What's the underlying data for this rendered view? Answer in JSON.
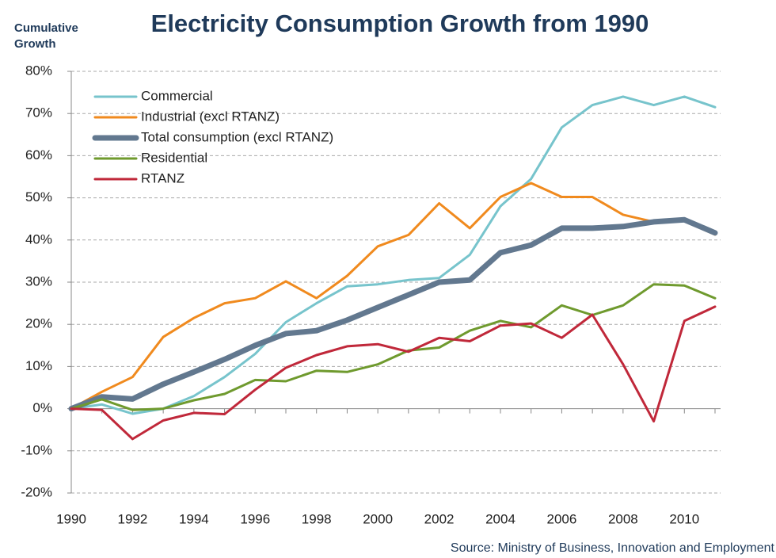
{
  "chart_data": {
    "type": "line",
    "title": "Electricity Consumption Growth from 1990",
    "y_label": "Cumulative Growth",
    "source": "Source: Ministry of Business, Innovation and Employment",
    "x": [
      1990,
      1991,
      1992,
      1993,
      1994,
      1995,
      1996,
      1997,
      1998,
      1999,
      2000,
      2001,
      2002,
      2003,
      2004,
      2005,
      2006,
      2007,
      2008,
      2009,
      2010,
      2011
    ],
    "xlim": [
      1990,
      2011
    ],
    "xticks": [
      1990,
      1992,
      1994,
      1996,
      1998,
      2000,
      2002,
      2004,
      2006,
      2008,
      2010
    ],
    "ylim": [
      -20,
      80
    ],
    "yticks": [
      {
        "value": -20,
        "label": "-20%"
      },
      {
        "value": -10,
        "label": "-10%"
      },
      {
        "value": 0,
        "label": "0%"
      },
      {
        "value": 10,
        "label": "10%"
      },
      {
        "value": 20,
        "label": "20%"
      },
      {
        "value": 30,
        "label": "30%"
      },
      {
        "value": 40,
        "label": "40%"
      },
      {
        "value": 50,
        "label": "50%"
      },
      {
        "value": 60,
        "label": "60%"
      },
      {
        "value": 70,
        "label": "70%"
      },
      {
        "value": 80,
        "label": "80%"
      }
    ],
    "grid": true,
    "legend": "upper left",
    "series": [
      {
        "name": "Commercial",
        "color": "#77c4cc",
        "width": 3,
        "values": [
          0,
          1,
          -1.2,
          0,
          3,
          7.5,
          13,
          20.5,
          25,
          29,
          29.5,
          30.5,
          31,
          36.5,
          48,
          54.5,
          66.7,
          72,
          74,
          72,
          74,
          71.5
        ]
      },
      {
        "name": "Industrial (excl RTANZ)",
        "color": "#f08a1e",
        "width": 3,
        "values": [
          0,
          4,
          7.5,
          17,
          21.5,
          25,
          26.2,
          30.2,
          26.2,
          31.5,
          38.5,
          41.2,
          48.7,
          42.8,
          50.2,
          53.5,
          50.2,
          50.2,
          46,
          44.3,
          44.5,
          41.3
        ]
      },
      {
        "name": "Total consumption (excl RTANZ)",
        "color": "#62788f",
        "width": 7,
        "values": [
          0,
          2.8,
          2.3,
          5.8,
          8.7,
          11.7,
          15,
          17.8,
          18.5,
          21,
          24,
          27,
          30,
          30.5,
          37,
          38.8,
          42.8,
          42.8,
          43.2,
          44.3,
          44.8,
          41.7
        ]
      },
      {
        "name": "Residential",
        "color": "#6f9a2e",
        "width": 3,
        "values": [
          0,
          2.2,
          -0.3,
          0,
          2,
          3.5,
          6.8,
          6.5,
          9,
          8.7,
          10.5,
          13.8,
          14.5,
          18.5,
          20.8,
          19.3,
          24.5,
          22.2,
          24.5,
          29.5,
          29.2,
          26.2
        ]
      },
      {
        "name": "RTANZ",
        "color": "#c0283a",
        "width": 3,
        "values": [
          0,
          -0.3,
          -7.2,
          -2.8,
          -1,
          -1.3,
          4.5,
          9.7,
          12.7,
          14.8,
          15.3,
          13.5,
          16.8,
          16,
          19.7,
          20.2,
          16.8,
          22.3,
          10.5,
          -3,
          20.8,
          24.2
        ]
      }
    ]
  }
}
